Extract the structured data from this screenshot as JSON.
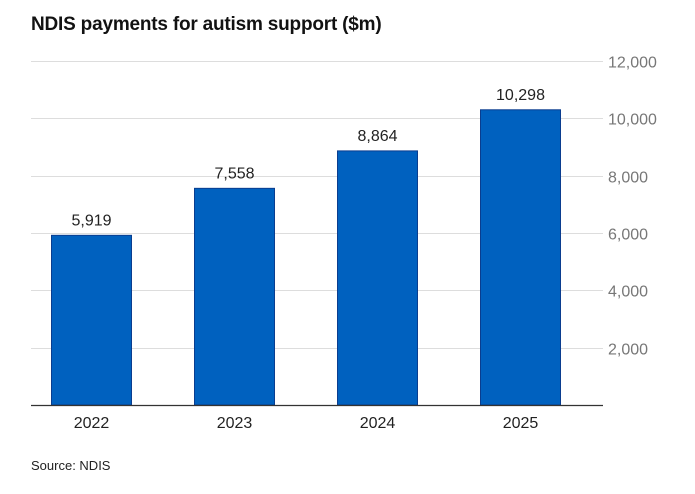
{
  "chart_data": {
    "type": "bar",
    "title": "NDIS payments for autism support ($m)",
    "categories": [
      "2022",
      "2023",
      "2024",
      "2025"
    ],
    "values": [
      5919,
      7558,
      8864,
      10298
    ],
    "value_labels": [
      "5,919",
      "7,558",
      "8,864",
      "10,298"
    ],
    "ylim": [
      0,
      12000
    ],
    "yticks": [
      2000,
      4000,
      6000,
      8000,
      10000,
      12000
    ],
    "ytick_labels": [
      "2,000",
      "4,000",
      "6,000",
      "8,000",
      "10,000",
      "12,000"
    ],
    "y_axis_side": "right",
    "grid": true,
    "source": "Source: NDIS"
  },
  "colors": {
    "bar": "#0061bf",
    "bar_edge": "#0a3d8f",
    "grid": "#dddddd",
    "axis": "#333333",
    "tick_label": "#777777",
    "text": "#222222"
  }
}
